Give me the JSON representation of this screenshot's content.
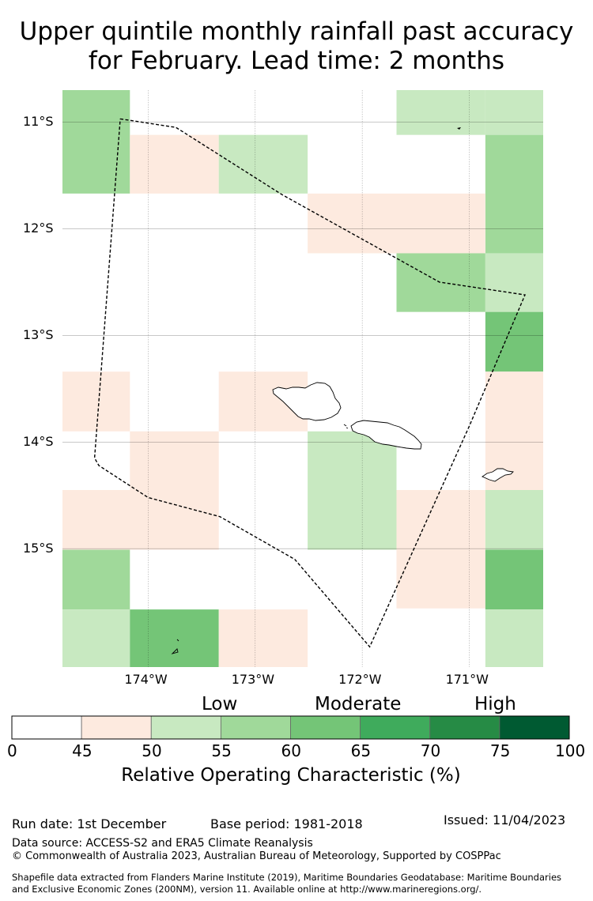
{
  "title_line1": "Upper quintile monthly rainfall past accuracy",
  "title_line2": "for February. Lead time: 2 months",
  "map": {
    "lat_ticks": [
      "11°S",
      "12°S",
      "13°S",
      "14°S",
      "15°S"
    ],
    "lon_ticks": [
      "174°W",
      "173°W",
      "172°W",
      "171°W"
    ],
    "cells": [
      {
        "lon": -174.8,
        "lat": -10.7,
        "w": 0.63,
        "h": 0.97,
        "roc": 57
      },
      {
        "lon": -174.17,
        "lat": -11.12,
        "w": 0.83,
        "h": 0.55,
        "roc": 47
      },
      {
        "lon": -173.34,
        "lat": -11.12,
        "w": 0.83,
        "h": 0.55,
        "roc": 52
      },
      {
        "lon": -171.68,
        "lat": -10.7,
        "w": 0.83,
        "h": 0.42,
        "roc": 52
      },
      {
        "lon": -170.85,
        "lat": -10.7,
        "w": 0.54,
        "h": 0.42,
        "roc": 52
      },
      {
        "lon": -170.85,
        "lat": -11.12,
        "w": 0.54,
        "h": 1.11,
        "roc": 57
      },
      {
        "lon": -172.51,
        "lat": -11.67,
        "w": 1.66,
        "h": 0.56,
        "roc": 47
      },
      {
        "lon": -171.68,
        "lat": -12.23,
        "w": 0.83,
        "h": 0.55,
        "roc": 57
      },
      {
        "lon": -170.85,
        "lat": -12.23,
        "w": 0.54,
        "h": 0.55,
        "roc": 52
      },
      {
        "lon": -170.85,
        "lat": -12.78,
        "w": 0.54,
        "h": 0.56,
        "roc": 62
      },
      {
        "lon": -174.8,
        "lat": -13.34,
        "w": 0.63,
        "h": 0.56,
        "roc": 47
      },
      {
        "lon": -173.34,
        "lat": -13.34,
        "w": 0.83,
        "h": 0.56,
        "roc": 47
      },
      {
        "lon": -170.85,
        "lat": -13.34,
        "w": 0.54,
        "h": 1.11,
        "roc": 47
      },
      {
        "lon": -174.17,
        "lat": -13.9,
        "w": 0.83,
        "h": 0.55,
        "roc": 47
      },
      {
        "lon": -172.51,
        "lat": -13.9,
        "w": 0.83,
        "h": 1.11,
        "roc": 52
      },
      {
        "lon": -174.8,
        "lat": -14.45,
        "w": 1.46,
        "h": 0.56,
        "roc": 47
      },
      {
        "lon": -171.68,
        "lat": -14.45,
        "w": 0.83,
        "h": 1.11,
        "roc": 47
      },
      {
        "lon": -170.85,
        "lat": -14.45,
        "w": 0.54,
        "h": 0.56,
        "roc": 52
      },
      {
        "lon": -174.8,
        "lat": -15.01,
        "w": 0.63,
        "h": 0.56,
        "roc": 57
      },
      {
        "lon": -170.85,
        "lat": -15.01,
        "w": 0.54,
        "h": 0.56,
        "roc": 62
      },
      {
        "lon": -174.8,
        "lat": -15.57,
        "w": 0.63,
        "h": 0.54,
        "roc": 52
      },
      {
        "lon": -174.17,
        "lat": -15.57,
        "w": 0.83,
        "h": 0.54,
        "roc": 62
      },
      {
        "lon": -173.34,
        "lat": -15.57,
        "w": 0.83,
        "h": 0.54,
        "roc": 47
      },
      {
        "lon": -170.85,
        "lat": -15.57,
        "w": 0.54,
        "h": 0.54,
        "roc": 52
      }
    ],
    "eez_boundary": [
      [
        -174.26,
        -10.97
      ],
      [
        -173.74,
        -11.05
      ],
      [
        -172.75,
        -11.68
      ],
      [
        -171.28,
        -12.5
      ],
      [
        -170.48,
        -12.62
      ],
      [
        -171.0,
        -13.85
      ],
      [
        -171.93,
        -15.92
      ],
      [
        -172.63,
        -15.1
      ],
      [
        -173.33,
        -14.7
      ],
      [
        -174.0,
        -14.52
      ],
      [
        -174.46,
        -14.22
      ],
      [
        -174.5,
        -14.15
      ],
      [
        -174.26,
        -10.97
      ]
    ]
  },
  "colorbar": {
    "category_labels": [
      "Low",
      "Moderate",
      "High"
    ],
    "tick_labels": [
      "0",
      "45",
      "50",
      "55",
      "60",
      "65",
      "70",
      "75",
      "100"
    ],
    "bins": [
      0,
      45,
      50,
      55,
      60,
      65,
      70,
      75,
      100
    ],
    "colors": [
      "#ffffff",
      "#fdeadf",
      "#c8e9c1",
      "#a0d99a",
      "#74c577",
      "#3fab5c",
      "#268b45",
      "#005a32"
    ],
    "title": "Relative Operating Characteristic (%)"
  },
  "footer": {
    "run_date": "Run date: 1st December",
    "base_period": "Base period: 1981-2018",
    "issued": "Issued: 11/04/2023",
    "data_source": "Data source: ACCESS-S2 and ERA5 Climate Reanalysis",
    "copyright": "© Commonwealth of Australia 2023, Australian Bureau of Meteorology, Supported by COSPPac",
    "shapefile_line1": "Shapefile data extracted from Flanders Marine Institute (2019), Maritime Boundaries Geodatabase: Maritime Boundaries",
    "shapefile_line2": "and Exclusive Economic Zones (200NM), version 11. Available online at http://www.marineregions.org/."
  }
}
